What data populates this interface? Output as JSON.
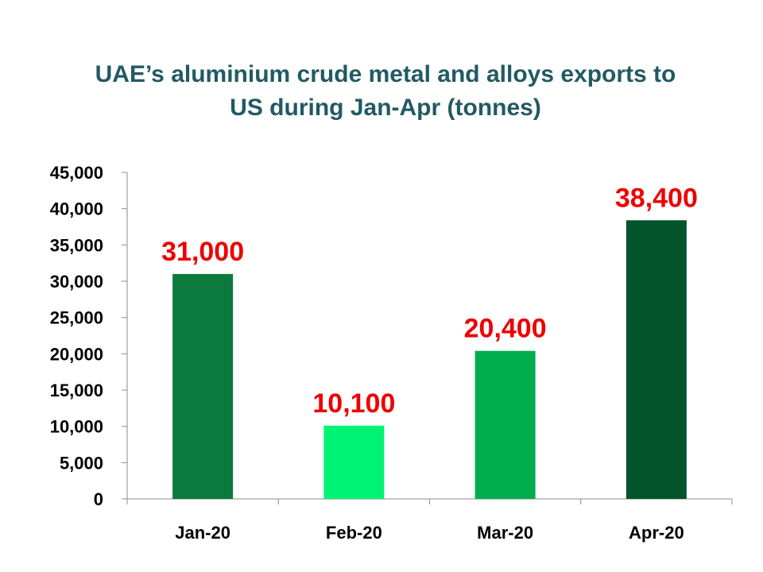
{
  "chart_data": {
    "type": "bar",
    "title_lines": [
      "UAE’s aluminium crude metal and alloys exports to",
      "US during Jan-Apr (tonnes)"
    ],
    "categories": [
      "Jan-20",
      "Feb-20",
      "Mar-20",
      "Apr-20"
    ],
    "values": [
      31000,
      10100,
      20400,
      38400
    ],
    "data_labels": [
      "31,000",
      "10,100",
      "20,400",
      "38,400"
    ],
    "bar_colors": [
      "#0b7a3c",
      "#00f374",
      "#00ad4f",
      "#03542a"
    ],
    "label_color": "#ee0000",
    "ylim": [
      0,
      45000
    ],
    "yticks": [
      0,
      5000,
      10000,
      15000,
      20000,
      25000,
      30000,
      35000,
      40000,
      45000
    ],
    "ytick_labels": [
      "0",
      "5,000",
      "10,000",
      "15,000",
      "20,000",
      "25,000",
      "30,000",
      "35,000",
      "40,000",
      "45,000"
    ],
    "xlabel": "",
    "ylabel": "",
    "grid": false,
    "legend": "none"
  }
}
